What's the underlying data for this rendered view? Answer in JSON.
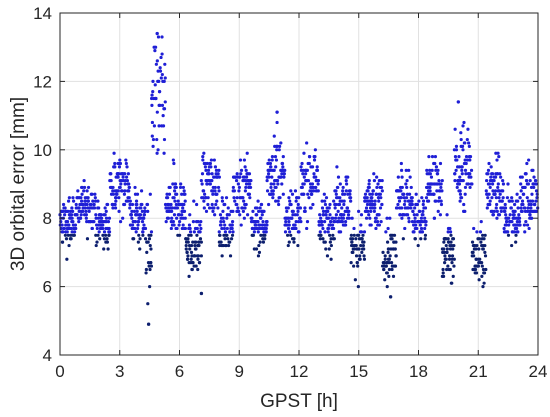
{
  "chart_data": {
    "type": "scatter",
    "title": "",
    "xlabel": "GPST [h]",
    "ylabel": "3D orbital error [mm]",
    "xlim": [
      0,
      24
    ],
    "ylim": [
      4,
      14
    ],
    "xticks": [
      0,
      3,
      6,
      9,
      12,
      15,
      18,
      21,
      24
    ],
    "yticks": [
      4,
      6,
      8,
      10,
      12,
      14
    ],
    "grid": true,
    "legend": "none",
    "colors": {
      "points": "#1f1fd6",
      "points_dark": "#0d1f6e",
      "grid": "#e1e1e1",
      "axis": "#262626"
    },
    "segments": [
      {
        "x0": 0.0,
        "x1": 0.8,
        "mean": 7.9,
        "spread": 0.8
      },
      {
        "x0": 0.8,
        "x1": 1.8,
        "mean": 8.3,
        "spread": 0.7
      },
      {
        "x0": 1.8,
        "x1": 2.5,
        "mean": 7.8,
        "spread": 0.8
      },
      {
        "x0": 2.5,
        "x1": 3.5,
        "mean": 9.0,
        "spread": 1.0
      },
      {
        "x0": 3.5,
        "x1": 4.3,
        "mean": 8.0,
        "spread": 0.9
      },
      {
        "x0": 4.3,
        "x1": 4.6,
        "mean": 7.0,
        "spread": 1.8
      },
      {
        "x0": 4.6,
        "x1": 5.3,
        "mean": 11.3,
        "spread": 2.0
      },
      {
        "x0": 5.3,
        "x1": 6.3,
        "mean": 8.3,
        "spread": 1.0
      },
      {
        "x0": 6.3,
        "x1": 7.1,
        "mean": 7.3,
        "spread": 1.0
      },
      {
        "x0": 7.1,
        "x1": 8.0,
        "mean": 9.0,
        "spread": 1.0
      },
      {
        "x0": 8.0,
        "x1": 8.7,
        "mean": 7.7,
        "spread": 0.8
      },
      {
        "x0": 8.7,
        "x1": 9.6,
        "mean": 8.9,
        "spread": 1.0
      },
      {
        "x0": 9.6,
        "x1": 10.4,
        "mean": 7.8,
        "spread": 0.8
      },
      {
        "x0": 10.4,
        "x1": 11.3,
        "mean": 9.3,
        "spread": 1.1
      },
      {
        "x0": 11.3,
        "x1": 12.1,
        "mean": 8.0,
        "spread": 0.8
      },
      {
        "x0": 12.1,
        "x1": 13.0,
        "mean": 9.1,
        "spread": 1.0
      },
      {
        "x0": 13.0,
        "x1": 13.8,
        "mean": 7.9,
        "spread": 0.8
      },
      {
        "x0": 13.8,
        "x1": 14.6,
        "mean": 8.5,
        "spread": 0.9
      },
      {
        "x0": 14.6,
        "x1": 15.3,
        "mean": 7.2,
        "spread": 0.9
      },
      {
        "x0": 15.3,
        "x1": 16.2,
        "mean": 8.4,
        "spread": 0.9
      },
      {
        "x0": 16.2,
        "x1": 16.9,
        "mean": 6.9,
        "spread": 1.0
      },
      {
        "x0": 16.9,
        "x1": 17.7,
        "mean": 8.6,
        "spread": 0.9
      },
      {
        "x0": 17.7,
        "x1": 18.4,
        "mean": 7.9,
        "spread": 0.7
      },
      {
        "x0": 18.4,
        "x1": 19.2,
        "mean": 8.9,
        "spread": 1.0
      },
      {
        "x0": 19.2,
        "x1": 19.8,
        "mean": 7.0,
        "spread": 1.0
      },
      {
        "x0": 19.8,
        "x1": 20.7,
        "mean": 9.5,
        "spread": 1.3
      },
      {
        "x0": 20.7,
        "x1": 21.4,
        "mean": 7.0,
        "spread": 0.9
      },
      {
        "x0": 21.4,
        "x1": 22.3,
        "mean": 8.8,
        "spread": 1.0
      },
      {
        "x0": 22.3,
        "x1": 23.1,
        "mean": 8.0,
        "spread": 0.8
      },
      {
        "x0": 23.1,
        "x1": 24.0,
        "mean": 8.7,
        "spread": 1.0
      }
    ],
    "extremes": [
      {
        "x": 4.88,
        "y": 13.4
      },
      {
        "x": 4.45,
        "y": 4.9
      },
      {
        "x": 10.9,
        "y": 11.1
      },
      {
        "x": 20.0,
        "y": 11.4
      },
      {
        "x": 16.6,
        "y": 5.7
      },
      {
        "x": 7.1,
        "y": 5.8
      }
    ]
  }
}
